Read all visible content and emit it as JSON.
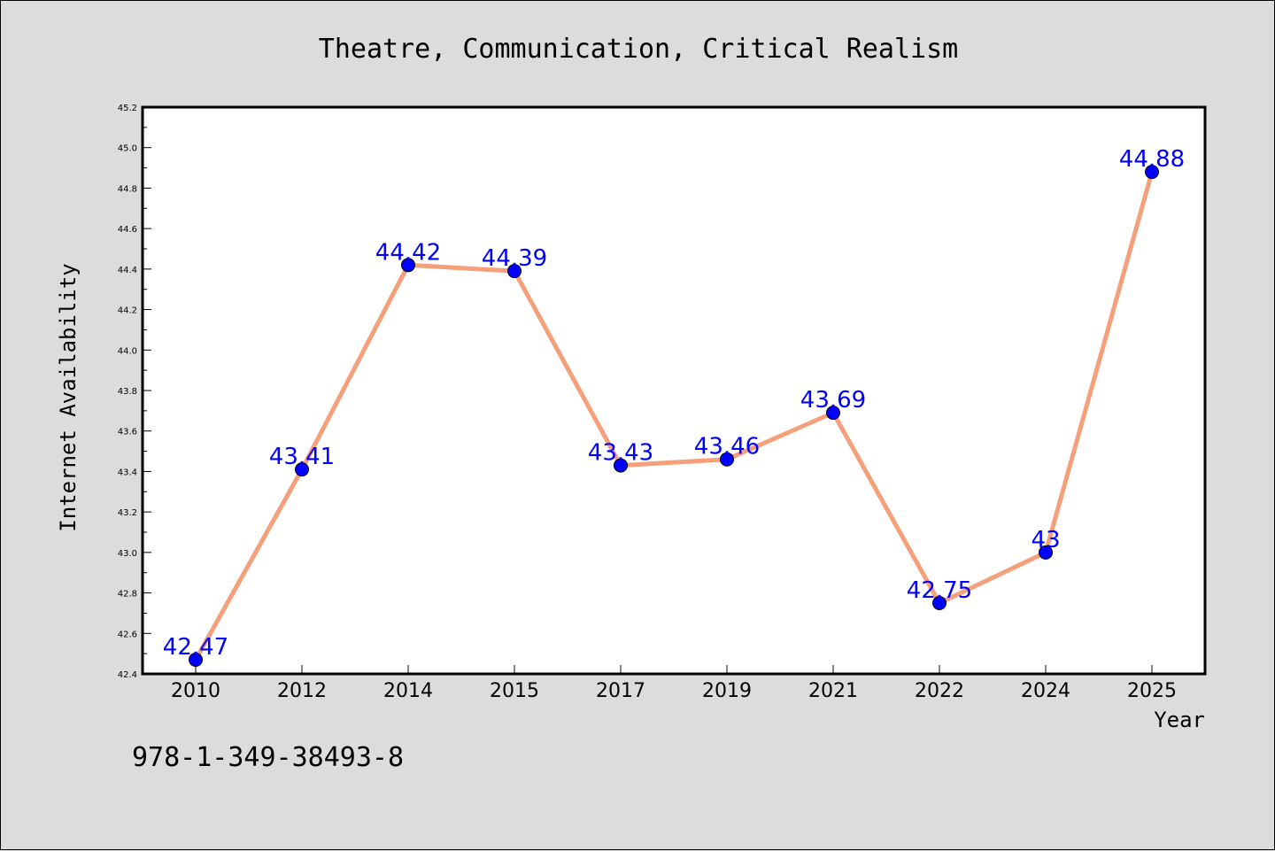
{
  "chart_data": {
    "type": "line",
    "title": "Theatre, Communication, Critical Realism",
    "xlabel": "Year",
    "ylabel": "Internet Availability",
    "categories": [
      "2010",
      "2012",
      "2014",
      "2015",
      "2017",
      "2019",
      "2021",
      "2022",
      "2024",
      "2025"
    ],
    "series": [
      {
        "values": [
          42.47,
          43.41,
          44.42,
          44.39,
          43.43,
          43.46,
          43.69,
          42.75,
          43.0,
          44.88
        ]
      }
    ],
    "data_labels": [
      "42.47",
      "43.41",
      "44.42",
      "44.39",
      "43.43",
      "43.46",
      "43.69",
      "42.75",
      "43",
      "44.88"
    ],
    "ylim": [
      42.4,
      45.2
    ],
    "yticks": [
      "42.4",
      "42.6",
      "42.8",
      "43.0",
      "43.2",
      "43.4",
      "43.6",
      "43.8",
      "44.0",
      "44.2",
      "44.4",
      "44.6",
      "44.8",
      "45.0",
      "45.2"
    ],
    "grid": false,
    "legend": "none",
    "colors": {
      "line": "#f5a07a",
      "marker": "#0000ff",
      "label": "#0000ff",
      "background": "#dcdcdc",
      "plot_background": "#ffffff"
    }
  },
  "note": "978-1-349-38493-8"
}
